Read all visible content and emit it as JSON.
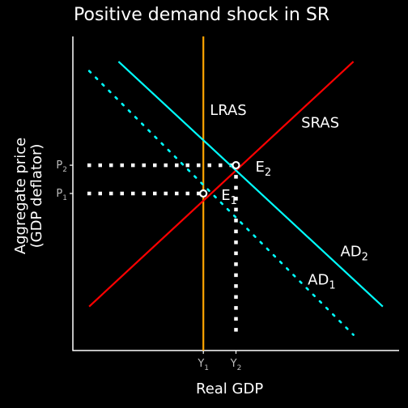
{
  "chart_data": {
    "type": "line",
    "title": "Positive demand shock in SR",
    "xlabel": "Real GDP",
    "ylabel_line1": "Aggregate price",
    "ylabel_line2": "(GDP deflator)",
    "xlim": [
      0,
      10
    ],
    "ylim": [
      0,
      10
    ],
    "grid": false,
    "series": [
      {
        "name": "LRAS",
        "label": "LRAS",
        "style": "solid",
        "color": "#FFA500",
        "points": [
          [
            4,
            0
          ],
          [
            4,
            10
          ]
        ]
      },
      {
        "name": "SRAS",
        "label": "SRAS",
        "style": "solid",
        "color": "#FF0000",
        "points": [
          [
            0.5,
            1.4
          ],
          [
            8.6,
            9.2
          ]
        ]
      },
      {
        "name": "AD1",
        "label_main": "AD",
        "label_sub": "1",
        "style": "dotted",
        "color": "#00FFFF",
        "points": [
          [
            0.5,
            8.9
          ],
          [
            8.6,
            0.5
          ]
        ]
      },
      {
        "name": "AD2",
        "label_main": "AD",
        "label_sub": "2",
        "style": "solid",
        "color": "#00FFFF",
        "points": [
          [
            1.4,
            9.2
          ],
          [
            9.5,
            1.4
          ]
        ]
      }
    ],
    "equilibria": [
      {
        "label_main": "E",
        "label_sub": "1",
        "x": 4.0,
        "y": 5.0
      },
      {
        "label_main": "E",
        "label_sub": "2",
        "x": 5.0,
        "y": 5.9
      }
    ],
    "x_ticks": [
      {
        "main": "Y",
        "sub": "1",
        "value": 4.0
      },
      {
        "main": "Y",
        "sub": "2",
        "value": 5.0
      }
    ],
    "y_ticks": [
      {
        "main": "P",
        "sub": "1",
        "value": 5.0
      },
      {
        "main": "P",
        "sub": "2",
        "value": 5.9
      }
    ],
    "colors": {
      "background": "#000000",
      "axis": "#FFFFFF",
      "text": "#FFFFFF",
      "tick_text": "#BEBEBE",
      "guide": "#FFFFFF"
    }
  }
}
